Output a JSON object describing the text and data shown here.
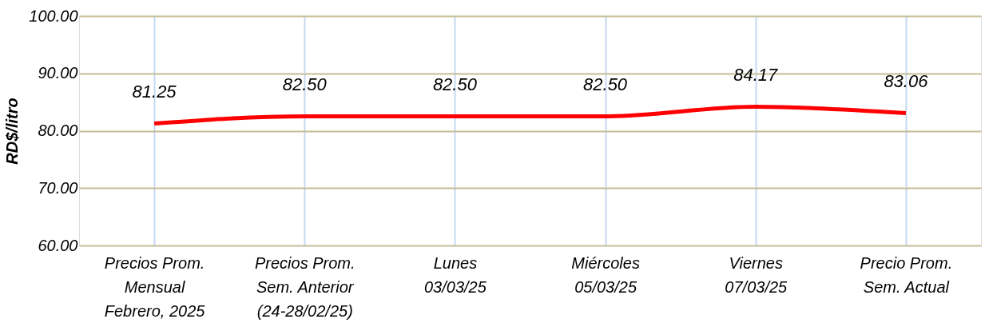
{
  "chart_data": {
    "type": "line",
    "ylabel": "RD$/litro",
    "categories": [
      "Precios Prom.\nMensual\nFebrero, 2025",
      "Precios Prom.\nSem. Anterior\n(24-28/02/25)",
      "Lunes\n03/03/25",
      "Miércoles\n05/03/25",
      "Viernes\n07/03/25",
      "Precio Prom.\nSem. Actual"
    ],
    "series": [
      {
        "color": "#ff0000",
        "values": [
          81.25,
          82.5,
          82.5,
          82.5,
          84.17,
          83.06
        ],
        "value_labels": [
          "81.25",
          "82.50",
          "82.50",
          "82.50",
          "84.17",
          "83.06"
        ]
      }
    ],
    "ylim": [
      60,
      100
    ],
    "yticks": [
      {
        "value": 60,
        "label": "60.00"
      },
      {
        "value": 70,
        "label": "70.00"
      },
      {
        "value": 80,
        "label": "80.00"
      },
      {
        "value": 90,
        "label": "90.00"
      },
      {
        "value": 100,
        "label": "100.00"
      }
    ],
    "grid": true,
    "marker": "none",
    "line_style": "solid"
  }
}
